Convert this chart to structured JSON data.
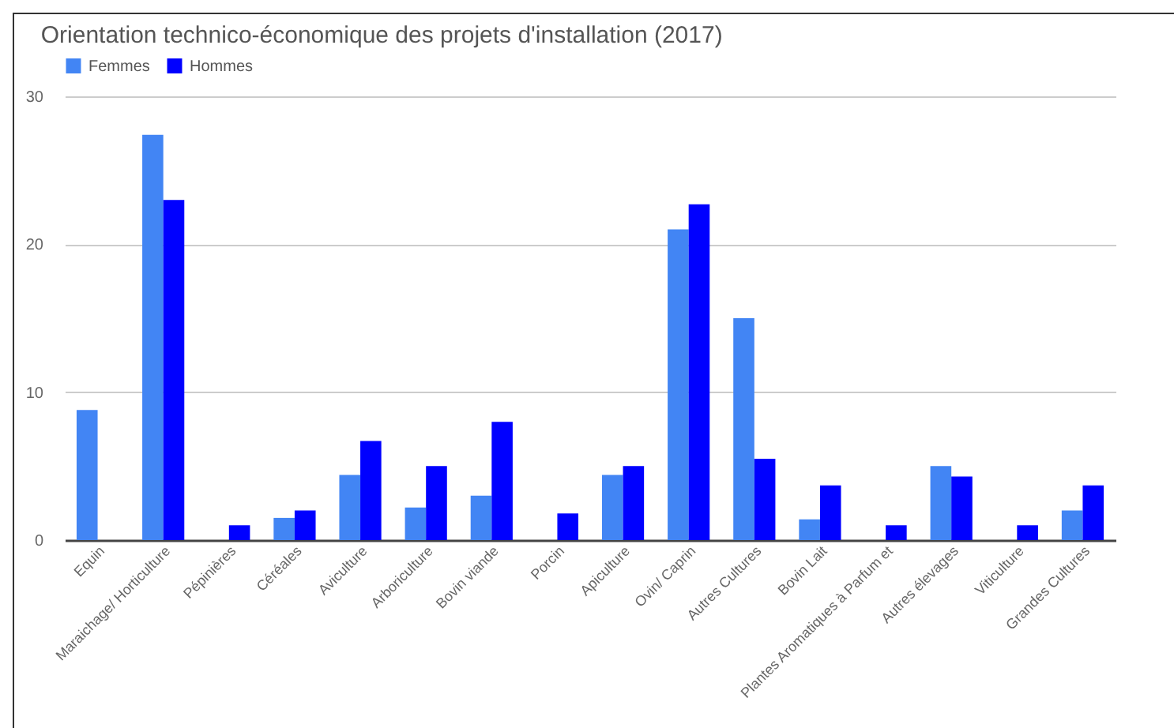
{
  "chart_data": {
    "type": "bar",
    "title": "Orientation technico-économique des projets d'installation (2017)",
    "categories": [
      "Equin",
      "Maraichage/ Horticulture",
      "Pépinières",
      "Céréales",
      "Aviculture",
      "Arboriculture",
      "Bovin viande",
      "Porcin",
      "Apiculture",
      "Ovin/ Caprin",
      "Autres Cultures",
      "Bovin Lait",
      "Plantes Aromatiques à Parfum et",
      "Autres élevages",
      "Viticulture",
      "Grandes Cultures"
    ],
    "series": [
      {
        "name": "Femmes",
        "color": "#4285f4",
        "values": [
          8.8,
          27.4,
          0,
          1.5,
          4.4,
          2.2,
          3,
          0,
          4.4,
          21,
          15,
          1.4,
          0,
          5,
          0,
          2
        ]
      },
      {
        "name": "Hommes",
        "color": "#0000ff",
        "values": [
          0,
          23,
          1,
          2,
          6.7,
          5,
          8,
          1.8,
          5,
          22.7,
          5.5,
          3.7,
          1,
          4.3,
          1,
          3.7
        ]
      }
    ],
    "ylim": [
      0,
      30
    ],
    "yticks": [
      0,
      10,
      20,
      30
    ],
    "grid": "y",
    "legend": "top"
  }
}
